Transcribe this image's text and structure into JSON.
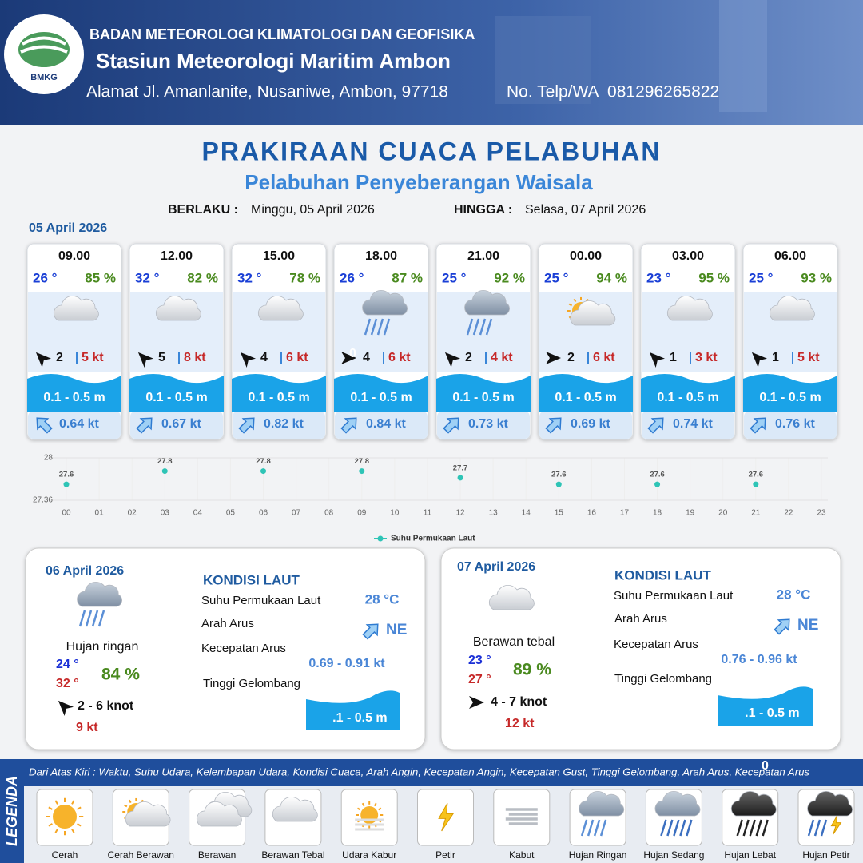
{
  "header": {
    "agency": "BADAN METEOROLOGI KLIMATOLOGI DAN GEOFISIKA",
    "station": "Stasiun Meteorologi Maritim Ambon",
    "address": "Alamat Jl. Amanlanite, Nusaniwe, Ambon, 97718",
    "phone": "No. Telp/WA  081296265822",
    "logo_text": "BMKG"
  },
  "title": "PRAKIRAAN CUACA PELABUHAN",
  "subtitle": "Pelabuhan Penyeberangan Waisala",
  "validity": {
    "from_label": "BERLAKU :",
    "from": "Minggu, 05 April 2026",
    "to_label": "HINGGA :",
    "to": "Selasa, 07 April 2026"
  },
  "day1": {
    "date": "05 April 2026",
    "forecasts": [
      {
        "time": "09.00",
        "temp": "26 °",
        "humidity": "85 %",
        "wind": "2",
        "gust": "5 kt",
        "wave": "0.1 - 0.5 m",
        "current": "0.64 kt"
      },
      {
        "time": "12.00",
        "temp": "32 °",
        "humidity": "82 %",
        "wind": "5",
        "gust": "8 kt",
        "wave": "0.1 - 0.5 m",
        "current": "0.67 kt"
      },
      {
        "time": "15.00",
        "temp": "32 °",
        "humidity": "78 %",
        "wind": "4",
        "gust": "6 kt",
        "wave": "0.1 - 0.5 m",
        "current": "0.82 kt"
      },
      {
        "time": "18.00",
        "temp": "26 °",
        "humidity": "87 %",
        "wind": "4",
        "gust": "6 kt",
        "wave": "0.1 - 0.5 m",
        "current": "0.84 kt"
      },
      {
        "time": "21.00",
        "temp": "25 °",
        "humidity": "92 %",
        "wind": "2",
        "gust": "4 kt",
        "wave": "0.1 - 0.5 m",
        "current": "0.73 kt"
      },
      {
        "time": "00.00",
        "temp": "25 °",
        "humidity": "94 %",
        "wind": "2",
        "gust": "6 kt",
        "wave": "0.1 - 0.5 m",
        "current": "0.69 kt"
      },
      {
        "time": "03.00",
        "temp": "23 °",
        "humidity": "95 %",
        "wind": "1",
        "gust": "3 kt",
        "wave": "0.1 - 0.5 m",
        "current": "0.74 kt"
      },
      {
        "time": "06.00",
        "temp": "25 °",
        "humidity": "93 %",
        "wind": "1",
        "gust": "5 kt",
        "wave": "0.1 - 0.5 m",
        "current": "0.76 kt"
      }
    ]
  },
  "chart_data": {
    "type": "scatter",
    "categories": [
      "00",
      "01",
      "02",
      "03",
      "04",
      "05",
      "06",
      "07",
      "08",
      "09",
      "10",
      "11",
      "12",
      "13",
      "14",
      "15",
      "16",
      "17",
      "18",
      "19",
      "20",
      "21",
      "22",
      "23"
    ],
    "series": [
      {
        "name": "Suhu Permukaan Laut",
        "color": "#2ec4b6",
        "values": [
          27.6,
          null,
          null,
          27.8,
          null,
          null,
          27.8,
          null,
          null,
          27.8,
          null,
          null,
          27.7,
          null,
          null,
          27.6,
          null,
          null,
          27.6,
          null,
          null,
          27.6,
          null,
          null
        ]
      }
    ],
    "ylim": [
      27.36,
      28
    ],
    "yticks": [
      27.36,
      28
    ],
    "grid": true,
    "legend": "bottom"
  },
  "day2": {
    "date": "06 April 2026",
    "condition": "Hujan ringan",
    "temp_min": "24 °",
    "temp_max": "32 °",
    "humidity": "84 %",
    "wind": "2  - 6 knot",
    "gust": "9 kt",
    "sea": {
      "heading": "KONDISI LAUT",
      "sst_label": "Suhu Permukaan Laut",
      "sst": "28 °C",
      "dir_label": "Arah Arus",
      "dir": "NE",
      "speed_label": "Kecepatan Arus",
      "speed": "0.69 - 0.91 kt",
      "wave_label": "Tinggi Gelombang",
      "wave": "0.1 - 0.5 m"
    }
  },
  "day3": {
    "date": "07 April 2026",
    "condition": "Berawan tebal",
    "temp_min": "23 °",
    "temp_max": "27 °",
    "humidity": "89 %",
    "wind": "4 - 7 knot",
    "gust": "12 kt",
    "sea": {
      "heading": "KONDISI LAUT",
      "sst_label": "Suhu Permukaan Laut",
      "sst": "28 °C",
      "dir_label": "Arah Arus",
      "dir": "NE",
      "speed_label": "Kecepatan Arus",
      "speed": "0.76 - 0.96 kt",
      "wave_label": "Tinggi Gelombang",
      "wave": "0.1 - 0.5 m"
    }
  },
  "legend": {
    "title": "LEGENDA",
    "description": "Dari Atas Kiri : Waktu, Suhu Udara, Kelembapan Udara, Kondisi Cuaca, Arah Angin, Kecepatan Angin, Kecepatan Gust, Tinggi Gelombang, Arah Arus, Kecepatan Arus",
    "items": [
      "Cerah",
      "Cerah Berawan",
      "Berawan",
      "Berawan Tebal",
      "Udara Kabur",
      "Petir",
      "Kabut",
      "Hujan Ringan",
      "Hujan Sedang",
      "Hujan Lebat",
      "Hujan Petir"
    ]
  }
}
